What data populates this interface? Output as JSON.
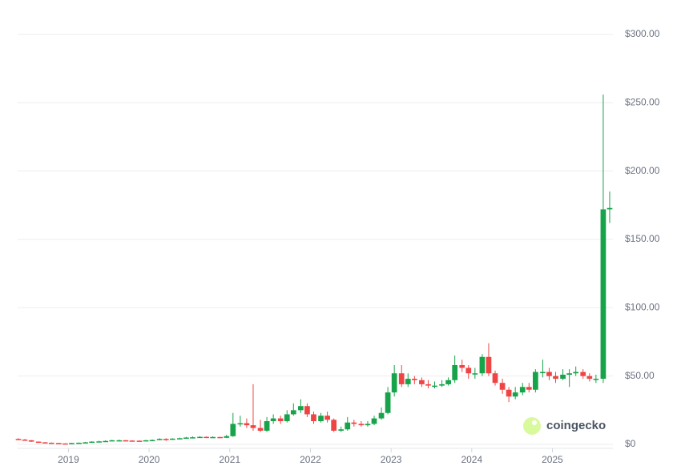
{
  "chart_data": {
    "type": "candlestick",
    "x": [
      2018.38,
      2018.46,
      2018.54,
      2018.63,
      2018.71,
      2018.79,
      2018.88,
      2018.96,
      2019.04,
      2019.13,
      2019.21,
      2019.29,
      2019.38,
      2019.46,
      2019.54,
      2019.63,
      2019.71,
      2019.79,
      2019.88,
      2019.96,
      2020.04,
      2020.13,
      2020.21,
      2020.29,
      2020.38,
      2020.46,
      2020.54,
      2020.63,
      2020.71,
      2020.79,
      2020.88,
      2020.96,
      2021.04,
      2021.13,
      2021.21,
      2021.29,
      2021.38,
      2021.46,
      2021.54,
      2021.63,
      2021.71,
      2021.79,
      2021.88,
      2021.96,
      2022.04,
      2022.13,
      2022.21,
      2022.29,
      2022.38,
      2022.46,
      2022.54,
      2022.63,
      2022.71,
      2022.79,
      2022.88,
      2022.96,
      2023.04,
      2023.13,
      2023.21,
      2023.29,
      2023.38,
      2023.46,
      2023.54,
      2023.63,
      2023.71,
      2023.79,
      2023.88,
      2023.96,
      2024.04,
      2024.13,
      2024.21,
      2024.29,
      2024.38,
      2024.46,
      2024.54,
      2024.63,
      2024.71,
      2024.79,
      2024.88,
      2024.96,
      2025.04,
      2025.13,
      2025.21,
      2025.29,
      2025.38,
      2025.46,
      2025.54,
      2025.63,
      2025.71
    ],
    "open": [
      4,
      3.5,
      3,
      2,
      1.5,
      1.2,
      1,
      0.7,
      0.5,
      1,
      1.2,
      1.5,
      2,
      2.2,
      2.5,
      3,
      3,
      2.8,
      2.7,
      2.6,
      3,
      3.2,
      4,
      3.5,
      4.2,
      4.5,
      5,
      5.2,
      5.5,
      5,
      5.4,
      4.8,
      6,
      15,
      15.5,
      14,
      12,
      10,
      17,
      19,
      17,
      22,
      25,
      28,
      22,
      17,
      21,
      18,
      10,
      11,
      16,
      15,
      14,
      15,
      19,
      23,
      38,
      52,
      44,
      48,
      47,
      44,
      43,
      43,
      44,
      47,
      58,
      56,
      52,
      52,
      64,
      52,
      45,
      40,
      35,
      38,
      42,
      40,
      53,
      53,
      50,
      48,
      51,
      52,
      53,
      50,
      48,
      48,
      172
    ],
    "high": [
      4.5,
      4,
      3.2,
      2.2,
      1.7,
      1.4,
      1.1,
      0.8,
      1.2,
      1.4,
      1.8,
      2.3,
      2.6,
      2.9,
      3.4,
      3.5,
      3.2,
      3,
      2.9,
      3.3,
      3.6,
      4.5,
      4.5,
      4.5,
      4.9,
      5.5,
      5.8,
      6,
      5.8,
      5.8,
      5.6,
      7,
      23,
      21,
      19,
      44,
      18,
      20,
      22,
      21,
      25,
      30,
      33,
      30,
      24,
      23,
      24,
      19,
      13,
      20,
      18,
      17,
      17,
      21,
      27,
      42,
      58,
      58,
      52,
      50,
      49,
      47,
      46,
      47,
      49,
      65,
      62,
      58,
      56,
      66,
      74,
      54,
      48,
      42,
      42,
      45,
      45,
      55,
      62,
      56,
      53,
      55,
      55,
      57,
      55,
      52,
      51,
      256,
      185
    ],
    "low": [
      3.2,
      2.7,
      1.8,
      1.3,
      1,
      0.8,
      0.6,
      0.3,
      0.4,
      0.9,
      1.1,
      1.4,
      1.9,
      2,
      2.3,
      2.7,
      2.5,
      2.4,
      2.3,
      2.4,
      2.8,
      3,
      2.6,
      3.3,
      3.9,
      4.3,
      4.8,
      5,
      4.6,
      4.8,
      4.5,
      4.6,
      5.5,
      13,
      12,
      10,
      9,
      9,
      15,
      15,
      16,
      21,
      23,
      20,
      15,
      16,
      16,
      9,
      9,
      10,
      13,
      13,
      13,
      14,
      18,
      22,
      35,
      42,
      42,
      44,
      42,
      41,
      41,
      42,
      43,
      45,
      53,
      48,
      48,
      50,
      50,
      43,
      37,
      31,
      33,
      36,
      38,
      38,
      49,
      47,
      45,
      47,
      42,
      50,
      48,
      46,
      45,
      45,
      162
    ],
    "close": [
      3.5,
      3,
      2,
      1.5,
      1.2,
      1,
      0.7,
      0.5,
      1,
      1.2,
      1.5,
      2,
      2.2,
      2.5,
      3,
      3,
      2.8,
      2.7,
      2.6,
      3,
      3.2,
      4,
      3.5,
      4.2,
      4.5,
      5,
      5.2,
      5.5,
      5,
      5.4,
      4.8,
      6,
      15,
      15.5,
      14,
      12,
      10,
      17,
      19,
      17,
      22,
      25,
      28,
      22,
      17,
      21,
      18,
      10,
      11,
      16,
      15,
      14,
      15,
      19,
      23,
      38,
      52,
      44,
      48,
      47,
      44,
      43,
      43,
      44,
      47,
      58,
      56,
      52,
      52,
      64,
      52,
      45,
      40,
      35,
      38,
      42,
      40,
      53,
      53,
      50,
      48,
      51,
      52,
      53,
      50,
      48,
      48,
      172,
      173
    ],
    "up_color": "#16a34a",
    "down_color": "#ef4444",
    "xlim": [
      2018.37,
      2025.75
    ],
    "xticks": [
      2019,
      2020,
      2021,
      2022,
      2023,
      2024,
      2025
    ],
    "ylim": [
      0,
      300
    ],
    "yticks": [
      {
        "value": 0,
        "label": "$0"
      },
      {
        "value": 50,
        "label": "$50.00"
      },
      {
        "value": 100,
        "label": "$100.00"
      },
      {
        "value": 150,
        "label": "$150.00"
      },
      {
        "value": 200,
        "label": "$200.00"
      },
      {
        "value": 250,
        "label": "$250.00"
      },
      {
        "value": 300,
        "label": "$300.00"
      }
    ],
    "grid": true,
    "watermark": "coingecko"
  }
}
